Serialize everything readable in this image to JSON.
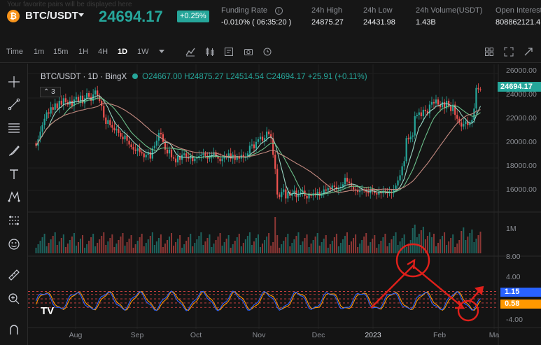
{
  "header": {
    "faded_note": "Your favorite pairs will be displayed here",
    "coin_letter": "₿",
    "pair": "BTC/USDT",
    "last_price": "24694.17",
    "change_pct": "+0.25%",
    "stats": [
      {
        "label": "Funding Rate",
        "value": "-0.010% ( 06:35:20 )"
      },
      {
        "label": "24h High",
        "value": "24875.27"
      },
      {
        "label": "24h Low",
        "value": "24431.98"
      },
      {
        "label": "24h Volume(USDT)",
        "value": "1.43B"
      },
      {
        "label": "Open Interest",
        "value": "808862121.4"
      }
    ]
  },
  "toolbar": {
    "timeframes": [
      "Time",
      "1m",
      "15m",
      "1H",
      "4H",
      "1D",
      "1W"
    ],
    "active_timeframe": "1D",
    "icons": [
      "indicator-icon",
      "candle-type-icon",
      "settings-icon",
      "template-icon",
      "camera-icon",
      "layout-icon",
      "fullscreen-icon",
      "expand-icon"
    ]
  },
  "sidebar": {
    "icons": [
      "crosshair-icon",
      "trendline-icon",
      "horizontal-lines-icon",
      "brush-icon",
      "text-icon",
      "pattern-icon",
      "measure-icon",
      "emoji-icon",
      "ruler-icon",
      "zoom-icon",
      "magnet-icon"
    ]
  },
  "legend": {
    "symbol": "BTC/USDT · 1D · BingX",
    "ohlc": "O24667.00 H24875.27 L24514.54 C24694.17 +25.91 (+0.11%)",
    "ma_count": "3"
  },
  "price_axis": {
    "ticks": [
      "26000.00",
      "24000.00",
      "22000.00",
      "20000.00",
      "18000.00",
      "16000.00"
    ],
    "last_price_tag": "24694.17",
    "volume_tick": "1M",
    "stoch_ticks": [
      "8.00",
      "4.00",
      "-4.00"
    ],
    "stoch_tags": [
      "1.15",
      "0.58"
    ]
  },
  "time_axis": {
    "labels": [
      "Aug",
      "Sep",
      "Oct",
      "Nov",
      "Dec",
      "2023",
      "Feb",
      "Ma"
    ]
  },
  "logo_text": "TV",
  "colors": {
    "up": "#26a69a",
    "down": "#ef5350",
    "annotation": "#e0201b",
    "ma1": "#9ad6c4",
    "ma2": "#6bbf8a",
    "ma3": "#c48a80",
    "stoch_blue": "#2962ff",
    "stoch_orange": "#ff9800"
  },
  "chart_data": {
    "type": "candlestick",
    "period": "1D",
    "y_range": [
      15300,
      26200
    ],
    "closes": [
      20300,
      20800,
      21400,
      21900,
      22400,
      22900,
      22800,
      23300,
      23100,
      23600,
      23200,
      23800,
      23500,
      24000,
      23700,
      23500,
      23800,
      23400,
      23900,
      24100,
      23700,
      24200,
      23600,
      24000,
      24400,
      24100,
      23800,
      24300,
      24600,
      24200,
      23800,
      23400,
      22500,
      22000,
      22300,
      21900,
      21700,
      21500,
      21600,
      21300,
      21000,
      20800,
      21100,
      20700,
      20400,
      20200,
      20000,
      19900,
      20100,
      19800,
      19700,
      19400,
      19600,
      19800,
      19300,
      20100,
      20300,
      20700,
      21300,
      21200,
      20600,
      20000,
      19700,
      20000,
      19400,
      19300,
      19000,
      19500,
      19200,
      19600,
      19700,
      19400,
      19300,
      19500,
      19100,
      19300,
      19400,
      19500,
      19600,
      19700,
      19500,
      19300,
      19400,
      19600,
      19800,
      19500,
      19300,
      19100,
      19300,
      19500,
      19400,
      19700,
      19300,
      19600,
      19200,
      19500,
      19300,
      19600,
      19400,
      19400,
      19700,
      20300,
      20400,
      20100,
      20600,
      20800,
      21000,
      20700,
      20900,
      21400,
      21200,
      20900,
      19600,
      18500,
      16500,
      16300,
      16700,
      16900,
      16200,
      16700,
      16400,
      16600,
      16800,
      16300,
      16500,
      16700,
      16800,
      16400,
      16200,
      16500,
      16400,
      16600,
      16500,
      16700,
      16400,
      16600,
      16900,
      16800,
      17000,
      16900,
      17200,
      17100,
      16900,
      17000,
      17100,
      17300,
      17800,
      17500,
      17400,
      17100,
      16900,
      16800,
      16700,
      16800,
      16900,
      16800,
      16700,
      16600,
      16900,
      16800,
      16600,
      16500,
      16700,
      16600,
      16800,
      16700,
      16600,
      16700,
      16600,
      16900,
      17200,
      17600,
      18000,
      18700,
      19100,
      20900,
      20800,
      21000,
      21100,
      22600,
      22700,
      22900,
      22600,
      23100,
      23000,
      22800,
      23500,
      23700,
      23600,
      23900,
      23500,
      23300,
      23700,
      23200,
      23800,
      23400,
      23000,
      23500,
      22700,
      22400,
      22100,
      21800,
      22000,
      22200,
      21900,
      22100,
      22300,
      23200,
      24800,
      24700,
      24694
    ]
  }
}
